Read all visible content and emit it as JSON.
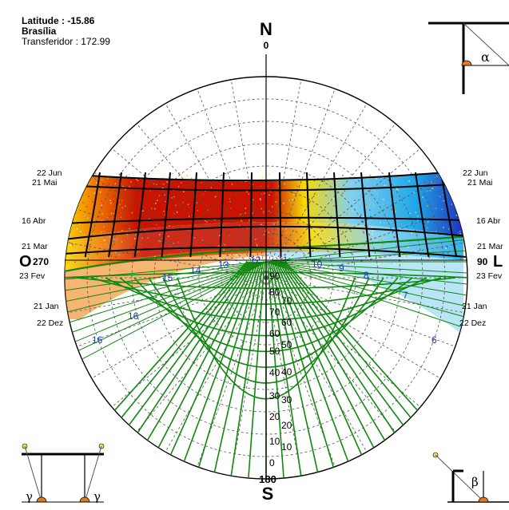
{
  "info": {
    "latitude_label": "Latitude : -15.86",
    "city": "Brasília",
    "transferidor_label": "Transferidor : 172.99"
  },
  "compass": {
    "north_letter": "N",
    "north_degrees": "0",
    "south_letter": "S",
    "south_degrees": "180",
    "west_letter": "O",
    "west_degrees": "270",
    "east_letter": "L",
    "east_degrees": "90"
  },
  "dates_left": [
    "22 Jun",
    "21 Mai",
    "16 Abr",
    "21 Mar",
    "23 Fev",
    "21 Jan",
    "22 Dez"
  ],
  "dates_right": [
    "22 Jun",
    "21 Mai",
    "16 Abr",
    "21 Mar",
    "23 Fev",
    "21 Jan",
    "22 Dez"
  ],
  "hours_on_arc": [
    "16",
    "16",
    "15",
    "14",
    "13",
    "12",
    "11",
    "10",
    "9",
    "8",
    "7",
    "6"
  ],
  "protractor_scale": [
    "90",
    "80",
    "70",
    "60",
    "50",
    "40",
    "30",
    "20",
    "10",
    "0"
  ],
  "protractor_scale_right": [
    "70",
    "60",
    "50",
    "40",
    "30",
    "20",
    "10"
  ],
  "symbols": {
    "alpha": "α",
    "beta": "β",
    "gamma": "γ"
  },
  "colors": {
    "hot_red": "#c81400",
    "warm_orange": "#f07800",
    "yellow": "#f8d800",
    "light_blue": "#80d0f0",
    "cyan": "#20a8e8",
    "dark_blue": "#2030c0",
    "green": "#108810",
    "hour_label_blue": "#1c3cc0",
    "grid_dashed": "#555555"
  }
}
